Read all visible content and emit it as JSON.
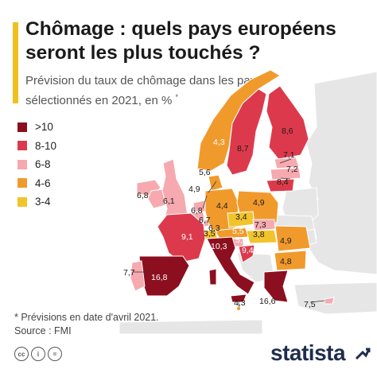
{
  "header": {
    "title": "Chômage : quels pays européens seront les plus touchés ?",
    "subtitle": "Prévision du taux de chômage dans les pays sélectionnés en 2021, en %",
    "subtitle_mark": "*"
  },
  "legend": [
    {
      "label": ">10",
      "color": "#8b0f1f"
    },
    {
      "label": "8-10",
      "color": "#dc3a4c"
    },
    {
      "label": "6-8",
      "color": "#f6a9ae"
    },
    {
      "label": "4-6",
      "color": "#f19a2c"
    },
    {
      "label": "3-4",
      "color": "#f2c42c"
    }
  ],
  "map": {
    "country_values": {
      "iceland": "6,8",
      "ireland": "6,1",
      "portugal": "7,7",
      "spain": "16,8",
      "france": "9,1",
      "belgium": "6,7",
      "netherlands": "6,8",
      "luxembourg": "6,3",
      "denmark": "5,6",
      "germany": "4,4",
      "switzerland": "3,5",
      "italy": "10,3",
      "austria": "5,5",
      "slovenia": "5,4",
      "croatia": "9,4",
      "czechia": "3,4",
      "slovakia": "7,3",
      "hungary": "3,8",
      "poland": "4,9",
      "romania": "4,9",
      "bulgaria": "4,8",
      "greece": "16,6",
      "cyprus": "7,5",
      "malta": "4,3",
      "norway": "4,3",
      "sweden": "8,7",
      "finland": "8,6",
      "estonia": "7,1",
      "latvia": "7,2",
      "lithuania": "8,4",
      "uk": "4,9"
    },
    "colors": {
      "none": "#e6e6e6",
      "water": "#ffffff"
    }
  },
  "footer": {
    "note": "* Prévisions en date d'avril 2021.",
    "source": "Source : FMI",
    "license_icons": [
      "creative-commons-icon",
      "attribution-icon",
      "no-derivatives-icon"
    ],
    "brand": "statista"
  }
}
